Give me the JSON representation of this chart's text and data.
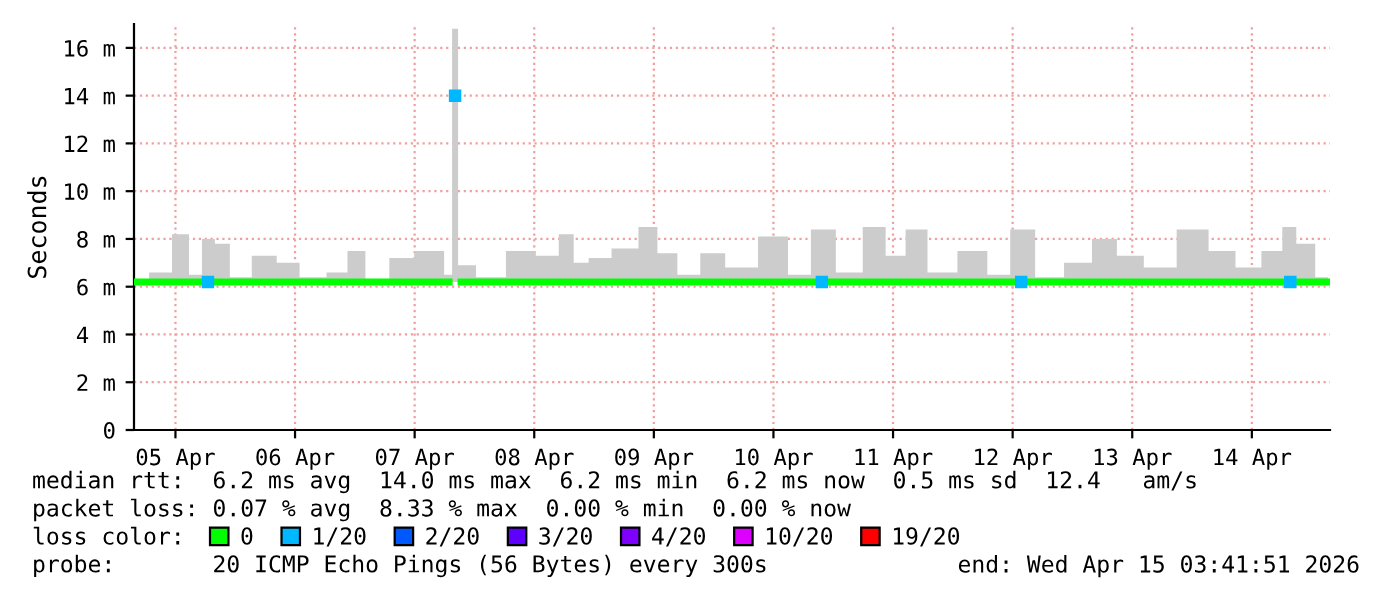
{
  "chart_data": {
    "type": "line",
    "ylabel": "Seconds",
    "x": [
      "2026-04-05T04:07",
      "2026-04-05T09:19",
      "2026-04-05T13:19",
      "2026-04-05T16:07",
      "2026-04-05T18:31",
      "2026-04-05T21:19",
      "2026-04-06T00:31",
      "2026-04-06T06:07",
      "2026-04-06T10:31",
      "2026-04-06T15:19",
      "2026-04-06T21:19",
      "2026-04-06T23:43",
      "2026-04-07T04:31",
      "2026-04-07T09:19",
      "2026-04-07T14:31",
      "2026-04-07T16:55",
      "2026-04-07T18:55",
      "2026-04-07T20:07",
      "2026-04-07T21:19",
      "2026-04-08T03:19",
      "2026-04-08T09:19",
      "2026-04-08T15:19",
      "2026-04-08T18:31",
      "2026-04-08T21:19",
      "2026-04-09T00:31",
      "2026-04-09T06:31",
      "2026-04-09T11:19",
      "2026-04-09T14:07",
      "2026-04-09T19:19",
      "2026-04-09T23:19",
      "2026-04-10T05:19",
      "2026-04-10T12:31",
      "2026-04-10T17:19",
      "2026-04-10T21:43",
      "2026-04-11T03:19",
      "2026-04-11T08:31",
      "2026-04-11T12:31",
      "2026-04-11T16:31",
      "2026-04-11T21:19",
      "2026-04-12T04:31",
      "2026-04-12T09:19",
      "2026-04-12T13:43",
      "2026-04-12T19:19",
      "2026-04-13T01:19",
      "2026-04-13T06:31",
      "2026-04-13T11:19",
      "2026-04-13T17:19",
      "2026-04-14T00:31",
      "2026-04-14T06:07",
      "2026-04-14T11:19",
      "2026-04-14T16:31",
      "2026-04-14T19:43",
      "2026-04-14T22:07",
      "2026-04-15T03:19"
    ],
    "series": [
      {
        "name": "0",
        "color": "#00ff00",
        "values": [
          6.2,
          6.2,
          6.2,
          6.2,
          6.2,
          6.2,
          6.2,
          6.2,
          6.2,
          6.2,
          6.2,
          6.2,
          6.2,
          6.2,
          6.2,
          6.2,
          6.2,
          null,
          6.2,
          6.2,
          6.2,
          6.2,
          6.2,
          6.2,
          6.2,
          6.2,
          6.2,
          6.2,
          6.2,
          6.2,
          6.2,
          6.2,
          6.2,
          6.2,
          6.2,
          6.2,
          6.2,
          6.2,
          6.2,
          6.2,
          6.2,
          6.2,
          6.2,
          6.2,
          6.2,
          6.2,
          6.2,
          6.2,
          6.2,
          6.2,
          6.2,
          6.2,
          6.2,
          6.2
        ],
        "lower": [
          6.2,
          6.2,
          6.2,
          6.2,
          6.2,
          6.2,
          6.2,
          6.2,
          6.2,
          6.2,
          6.2,
          6.2,
          6.2,
          6.2,
          6.2,
          6.2,
          6.2,
          6.2,
          6.2,
          6.2,
          6.2,
          6.2,
          6.2,
          6.2,
          6.2,
          6.2,
          6.2,
          6.2,
          6.2,
          6.2,
          6.2,
          6.2,
          6.2,
          6.2,
          6.2,
          6.2,
          6.2,
          6.2,
          6.2,
          6.2,
          6.2,
          6.2,
          6.2,
          6.2,
          6.2,
          6.2,
          6.2,
          6.2,
          6.2,
          6.2,
          6.2,
          6.2,
          6.2,
          6.2
        ],
        "upper": [
          6.3,
          6.6,
          8.2,
          6.5,
          8.0,
          7.8,
          6.4,
          7.3,
          7.0,
          6.4,
          6.6,
          7.5,
          6.3,
          7.2,
          7.5,
          7.5,
          6.5,
          16.8,
          6.9,
          6.4,
          7.5,
          7.3,
          8.2,
          7.0,
          7.2,
          7.6,
          8.5,
          7.4,
          6.5,
          7.4,
          6.8,
          8.1,
          6.5,
          8.4,
          6.6,
          8.5,
          7.3,
          8.4,
          6.6,
          7.5,
          6.5,
          8.4,
          6.4,
          7.0,
          8.0,
          7.3,
          6.8,
          8.4,
          7.5,
          6.8,
          7.5,
          8.5,
          7.8,
          6.4
        ]
      },
      {
        "name": "1/20",
        "color": "#00b8ff",
        "type": "scatter",
        "marker": "square",
        "x": [
          "2026-04-05T18:31",
          "2026-04-07T20:07",
          "2026-04-10T21:43",
          "2026-04-12T13:43",
          "2026-04-14T19:43"
        ],
        "values": [
          6.2,
          14.0,
          6.2,
          6.2,
          6.2
        ]
      },
      {
        "name": "2/20",
        "color": "#0059ff",
        "values": [
          null,
          null,
          null,
          null,
          null,
          null,
          null,
          null,
          null,
          null,
          null,
          null,
          null,
          null,
          null,
          null,
          null,
          null,
          null,
          null,
          null,
          null,
          null,
          null,
          null,
          null,
          null,
          null,
          null,
          null,
          null,
          null,
          null,
          null,
          null,
          null,
          null,
          null,
          null,
          null,
          null,
          null,
          null,
          null,
          null,
          null,
          null,
          null,
          null,
          null,
          null,
          null,
          null,
          null
        ]
      },
      {
        "name": "3/20",
        "color": "#5e00ff",
        "values": [
          null,
          null,
          null,
          null,
          null,
          null,
          null,
          null,
          null,
          null,
          null,
          null,
          null,
          null,
          null,
          null,
          null,
          null,
          null,
          null,
          null,
          null,
          null,
          null,
          null,
          null,
          null,
          null,
          null,
          null,
          null,
          null,
          null,
          null,
          null,
          null,
          null,
          null,
          null,
          null,
          null,
          null,
          null,
          null,
          null,
          null,
          null,
          null,
          null,
          null,
          null,
          null,
          null,
          null
        ]
      },
      {
        "name": "4/20",
        "color": "#7e00ff",
        "values": [
          null,
          null,
          null,
          null,
          null,
          null,
          null,
          null,
          null,
          null,
          null,
          null,
          null,
          null,
          null,
          null,
          null,
          null,
          null,
          null,
          null,
          null,
          null,
          null,
          null,
          null,
          null,
          null,
          null,
          null,
          null,
          null,
          null,
          null,
          null,
          null,
          null,
          null,
          null,
          null,
          null,
          null,
          null,
          null,
          null,
          null,
          null,
          null,
          null,
          null,
          null,
          null,
          null,
          null
        ]
      },
      {
        "name": "10/20",
        "color": "#dd00ff",
        "values": [
          null,
          null,
          null,
          null,
          null,
          null,
          null,
          null,
          null,
          null,
          null,
          null,
          null,
          null,
          null,
          null,
          null,
          null,
          null,
          null,
          null,
          null,
          null,
          null,
          null,
          null,
          null,
          null,
          null,
          null,
          null,
          null,
          null,
          null,
          null,
          null,
          null,
          null,
          null,
          null,
          null,
          null,
          null,
          null,
          null,
          null,
          null,
          null,
          null,
          null,
          null,
          null,
          null,
          null
        ]
      },
      {
        "name": "19/20",
        "color": "#ff0000",
        "values": [
          null,
          null,
          null,
          null,
          null,
          null,
          null,
          null,
          null,
          null,
          null,
          null,
          null,
          null,
          null,
          null,
          null,
          null,
          null,
          null,
          null,
          null,
          null,
          null,
          null,
          null,
          null,
          null,
          null,
          null,
          null,
          null,
          null,
          null,
          null,
          null,
          null,
          null,
          null,
          null,
          null,
          null,
          null,
          null,
          null,
          null,
          null,
          null,
          null,
          null,
          null,
          null,
          null,
          null
        ]
      }
    ],
    "legend": "bottom",
    "legend_title": "loss color:",
    "xlim": [
      "2026-04-05T03:41",
      "2026-04-15T03:41"
    ],
    "xticks": [
      {
        "value": "2026-04-05T12:00",
        "label": "05 Apr"
      },
      {
        "value": "2026-04-06T12:00",
        "label": "06 Apr"
      },
      {
        "value": "2026-04-07T12:00",
        "label": "07 Apr"
      },
      {
        "value": "2026-04-08T12:00",
        "label": "08 Apr"
      },
      {
        "value": "2026-04-09T12:00",
        "label": "09 Apr"
      },
      {
        "value": "2026-04-10T12:00",
        "label": "10 Apr"
      },
      {
        "value": "2026-04-11T12:00",
        "label": "11 Apr"
      },
      {
        "value": "2026-04-12T12:00",
        "label": "12 Apr"
      },
      {
        "value": "2026-04-13T12:00",
        "label": "13 Apr"
      },
      {
        "value": "2026-04-14T12:00",
        "label": "14 Apr"
      }
    ],
    "ylim": [
      0,
      17
    ],
    "yticks": [
      0,
      {
        "value": 2,
        "label": "2 m"
      },
      {
        "value": 4,
        "label": "4 m"
      },
      {
        "value": 6,
        "label": "6 m"
      },
      {
        "value": 8,
        "label": "8 m"
      },
      {
        "value": 10,
        "label": "10 m"
      },
      {
        "value": 12,
        "label": "12 m"
      },
      {
        "value": 14,
        "label": "14 m"
      },
      {
        "value": 16,
        "label": "16 m"
      }
    ],
    "grid": true,
    "annotations": [
      "median rtt:  6.2 ms avg  14.0 ms max  6.2 ms min  6.2 ms now  0.5 ms sd  12.4   am/s",
      "packet loss: 0.07 % avg  8.33 % max  0.00 % min  0.00 % now",
      "probe:       20 ICMP Echo Pings (56 Bytes) every 300s",
      "end: Wed Apr 15 03:41:51 2026"
    ]
  }
}
